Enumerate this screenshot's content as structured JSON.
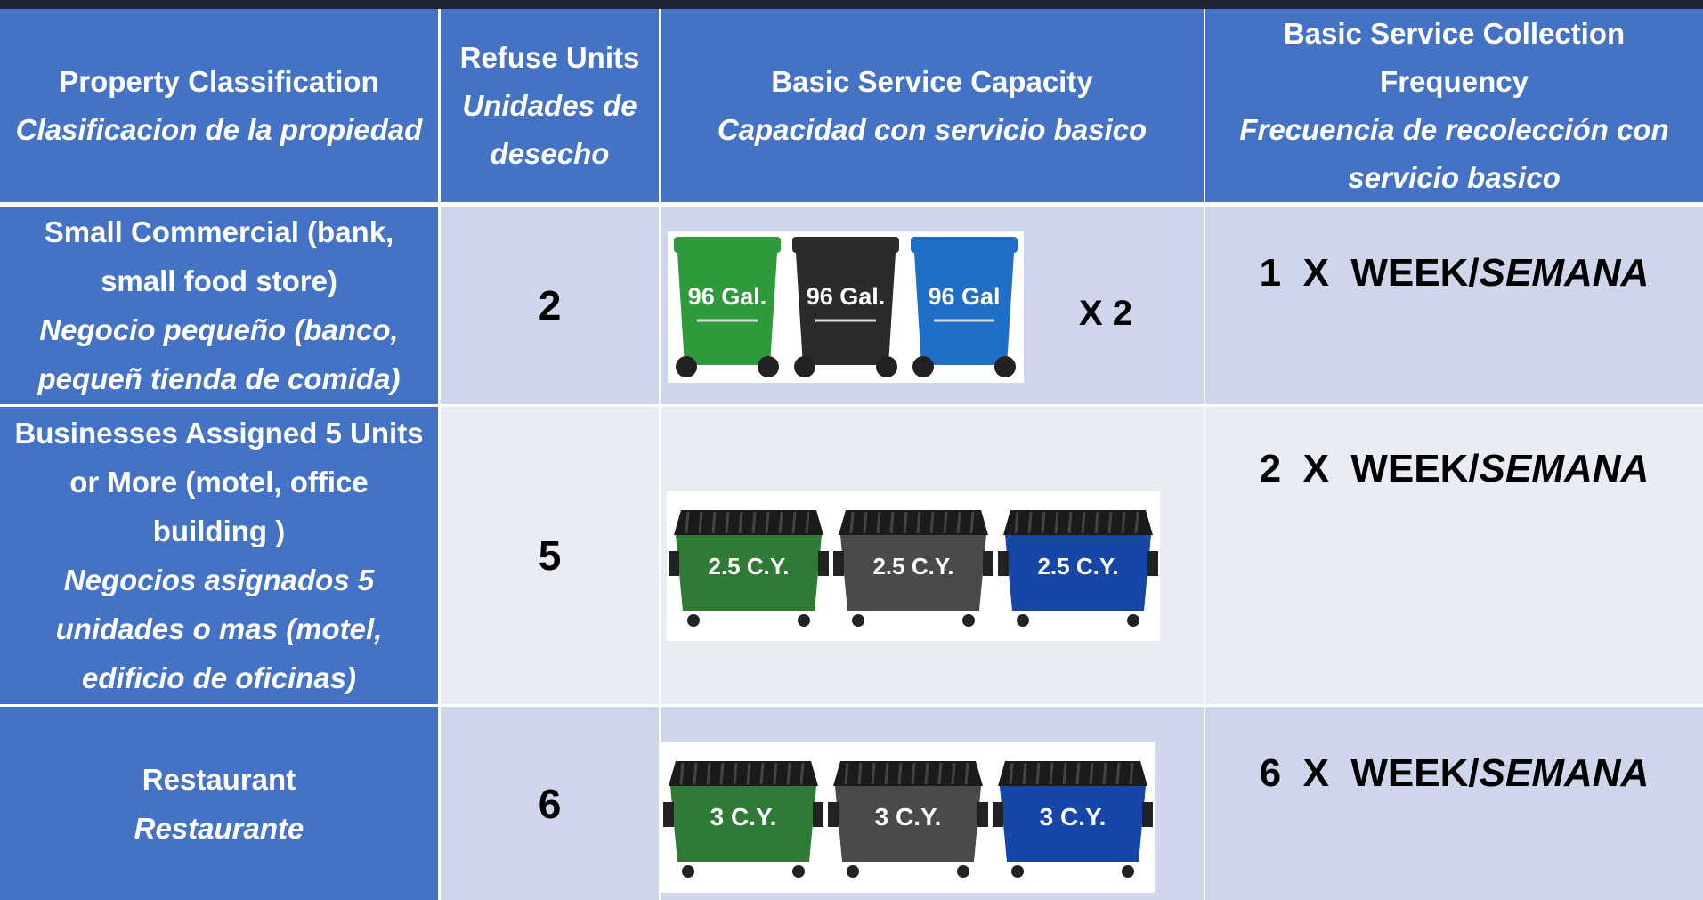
{
  "header": {
    "columns": [
      {
        "english": "Property Classification",
        "spanish": "Clasificacion de la propiedad"
      },
      {
        "english": "Refuse Units",
        "spanish": "Unidades de desecho"
      },
      {
        "english": "Basic Service Capacity",
        "spanish": "Capacidad con servicio basico"
      },
      {
        "english": "Basic Service Collection Frequency",
        "spanish": "Frecuencia de  recolección con servicio basico"
      }
    ]
  },
  "table": {
    "rows": [
      {
        "classification": {
          "english": "Small Commercial (bank, small food store)",
          "spanish": "Negocio pequeño (banco, pequeñ tienda de comida)"
        },
        "units": "2",
        "capacity": {
          "containers": [
            "96 Gal.",
            "96 Gal.",
            "96 Gal"
          ],
          "multiplier": "X 2"
        },
        "frequency": {
          "text": "1  X  WEEK/",
          "emphasis": "SEMANA"
        }
      },
      {
        "classification": {
          "english": "Businesses Assigned 5 Units or More  (motel, office building )",
          "spanish": "Negocios asignados 5 unidades o mas  (motel, edificio de oficinas)"
        },
        "units": "5",
        "capacity": {
          "containers": [
            "2.5 C.Y.",
            "2.5 C.Y.",
            "2.5 C.Y."
          ]
        },
        "frequency": {
          "text": "2  X  WEEK/",
          "emphasis": "SEMANA"
        }
      },
      {
        "classification": {
          "english": "Restaurant",
          "spanish": "Restaurante"
        },
        "units": "6",
        "capacity": {
          "containers": [
            "3 C.Y.",
            "3 C.Y.",
            "3 C.Y."
          ]
        },
        "frequency": {
          "text": "6  X  WEEK/",
          "emphasis": "SEMANA"
        }
      }
    ]
  }
}
